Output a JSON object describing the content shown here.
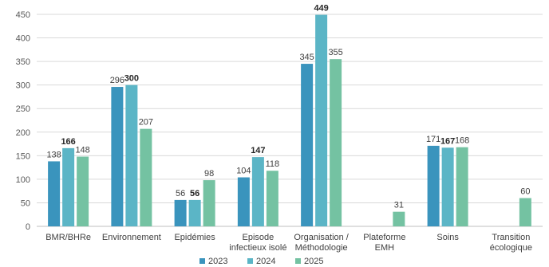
{
  "chart_data": {
    "type": "bar",
    "categories": [
      [
        "BMR/BHRe"
      ],
      [
        "Environnement"
      ],
      [
        "Epidémies"
      ],
      [
        "Episode",
        "infectieux isolé"
      ],
      [
        "Organisation /",
        "Méthodologie"
      ],
      [
        "Plateforme",
        "EMH"
      ],
      [
        "Soins"
      ],
      [
        "Transition",
        "écologique"
      ]
    ],
    "series": [
      {
        "name": "2023",
        "color": "#3a94bd",
        "values": [
          138,
          296,
          56,
          104,
          345,
          null,
          171,
          null
        ]
      },
      {
        "name": "2024",
        "color": "#5bb5c6",
        "values": [
          166,
          300,
          56,
          147,
          449,
          null,
          167,
          null
        ]
      },
      {
        "name": "2025",
        "color": "#74c2a2",
        "values": [
          148,
          207,
          98,
          118,
          355,
          31,
          168,
          60
        ]
      }
    ],
    "bold_series": [
      "2024"
    ],
    "ylim": [
      0,
      450
    ],
    "yticks": [
      0,
      50,
      100,
      150,
      200,
      250,
      300,
      350,
      400,
      450
    ],
    "grid": true,
    "legend": "bottom-center"
  }
}
